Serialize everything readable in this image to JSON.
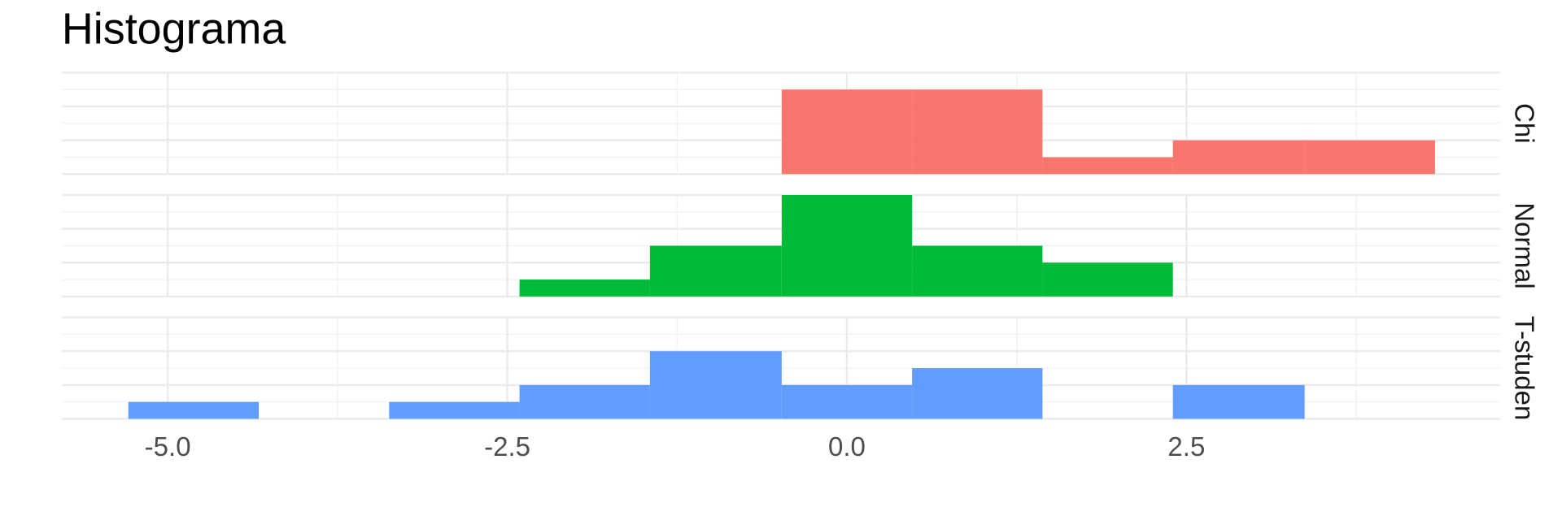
{
  "chart_data": {
    "type": "histogram",
    "title": "Histograma",
    "bins": [
      -5.29,
      -4.33,
      -3.37,
      -2.41,
      -1.45,
      -0.48,
      0.48,
      1.44,
      2.4,
      3.37,
      4.33
    ],
    "series": [
      {
        "name": "Chi",
        "color": "#F8766D",
        "values": [
          0,
          0,
          0,
          0,
          0,
          5,
          5,
          1,
          2,
          2
        ]
      },
      {
        "name": "Normal",
        "color": "#00BA38",
        "values": [
          0,
          0,
          0,
          1,
          3,
          6,
          3,
          2,
          0,
          0
        ]
      },
      {
        "name": "T-studen",
        "color": "#619CFF",
        "values": [
          1,
          0,
          1,
          2,
          4,
          2,
          3,
          0,
          2,
          0
        ]
      }
    ],
    "xlim": [
      -5.78,
      4.81
    ],
    "xticks": [
      {
        "value": -5,
        "label": "-5.0"
      },
      {
        "value": -2.5,
        "label": "-2.5"
      },
      {
        "value": 0,
        "label": "0.0"
      },
      2.5
    ],
    "ylim": [
      0,
      6
    ],
    "yticks": [
      0,
      2,
      4,
      6
    ],
    "grid": true
  }
}
